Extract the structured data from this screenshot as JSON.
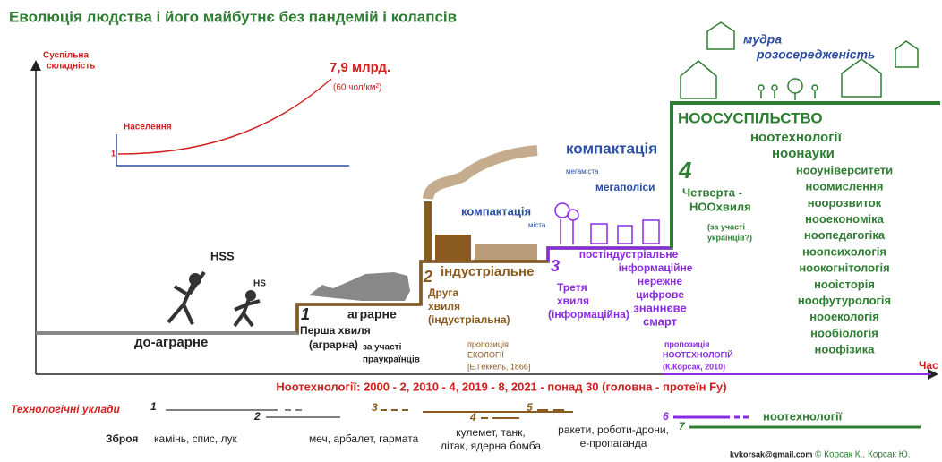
{
  "title": "Еволюція людства і його майбутнє без пандемій і колапсів",
  "axis": {
    "y": [
      "Суспільна",
      "складність"
    ],
    "x": "Час"
  },
  "population": {
    "label": "Населення",
    "start": "1",
    "value": "7,9 млрд.",
    "density": "(60 чол/км²)"
  },
  "hominids": {
    "hss": "HSS",
    "hs": "HS"
  },
  "stage0": {
    "name": "до-аграрне"
  },
  "stage1": {
    "number": "1",
    "name": "аграрне",
    "wave": [
      "Перша хвиля",
      "(аграрна)"
    ],
    "note": [
      "за участі",
      "праукраїнців"
    ]
  },
  "stage2": {
    "number": "2",
    "name": "індустріальне",
    "wave": [
      "Друга",
      "хвиля",
      "(індустріальна)"
    ],
    "compaction": "компактація",
    "city": "міста",
    "proposal": [
      "пропозиція",
      "ЕКОЛОГІЇ",
      "[Е.Геккель, 1866]"
    ]
  },
  "stage3": {
    "number": "3",
    "wave": [
      "Третя",
      "хвиля",
      "(інформаційна)"
    ],
    "compaction": "компактація",
    "megacities": "мегаміста",
    "megapolis": "мегаполіси",
    "traits": [
      "постіндустріальне",
      "інформаційне",
      "нережне",
      "цифрове",
      "знаннєве",
      "смарт"
    ],
    "proposal": [
      "пропозиція",
      "НООТЕХНОЛОГІЙ",
      "(К.Корсак, 2010)"
    ]
  },
  "stage4": {
    "number": "4",
    "wave": [
      "Четверта -",
      "НООхвиля"
    ],
    "note": [
      "(за участі",
      "українців?)"
    ],
    "society": "НООСУСПІЛЬСТВО",
    "headers": [
      "ноотехнології",
      "ноонауки"
    ],
    "sciences": [
      "нооуніверситети",
      "ноомислення",
      "ноорозвиток",
      "нооекономіка",
      "ноопедагогіка",
      "ноопсихологія",
      "ноокогнітологія",
      "нооісторія",
      "ноофутурологія",
      "нооекологія",
      "нообіологія",
      "ноофізика"
    ],
    "wisdom": [
      "мудра",
      "розосередженість"
    ]
  },
  "timeline": "Ноотехнології: 2000 - 2, 2010 - 4, 2019 - 8, 2021 - понад 30 (головна - протеїн Fy)",
  "tech": {
    "label": "Технологічні уклади",
    "orders": [
      "1",
      "2",
      "3",
      "4",
      "5",
      "6",
      "7"
    ],
    "noo": "ноотехнології"
  },
  "weapons": {
    "label": "Зброя",
    "items": [
      [
        "камінь, спис, лук"
      ],
      [
        "меч, арбалет, гармата"
      ],
      [
        "кулемет, танк,",
        "літак, ядерна бомба"
      ],
      [
        "ракети, роботи-дрони,",
        "е-пропаганда"
      ]
    ]
  },
  "footer": {
    "email": "kvkorsak@gmail.com",
    "copyright": "© Корсак К., Корсак Ю."
  }
}
